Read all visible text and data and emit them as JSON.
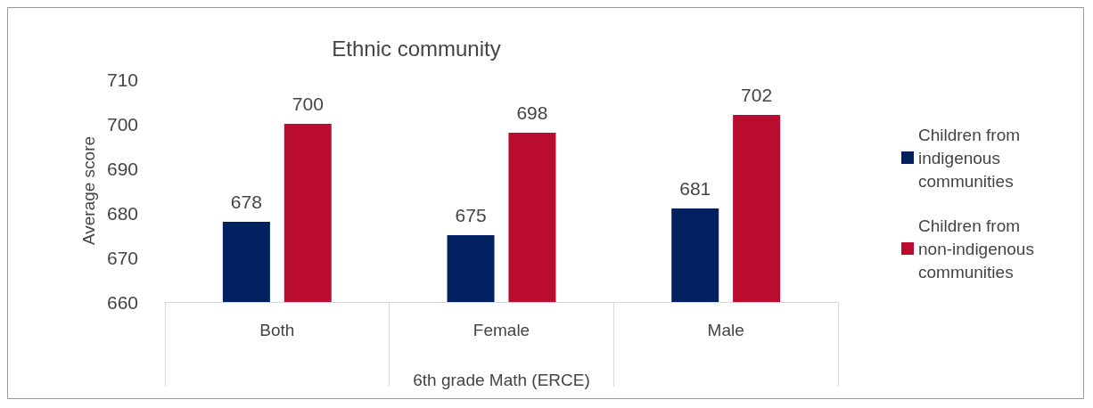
{
  "chart_data": {
    "type": "bar",
    "title": "Ethnic community",
    "xlabel": "6th grade Math (ERCE)",
    "ylabel": "Average score",
    "categories": [
      "Both",
      "Female",
      "Male"
    ],
    "series": [
      {
        "name": "Children from indigenous communities",
        "color": "#002060",
        "values": [
          678,
          675,
          681
        ]
      },
      {
        "name": "Children from non-indigenous communities",
        "color": "#ba0c2f",
        "values": [
          700,
          698,
          702
        ]
      }
    ],
    "ylim": [
      660,
      710
    ],
    "yticks": [
      660,
      670,
      680,
      690,
      700,
      710
    ],
    "data_labels": true,
    "grid": false,
    "legend": "right"
  }
}
